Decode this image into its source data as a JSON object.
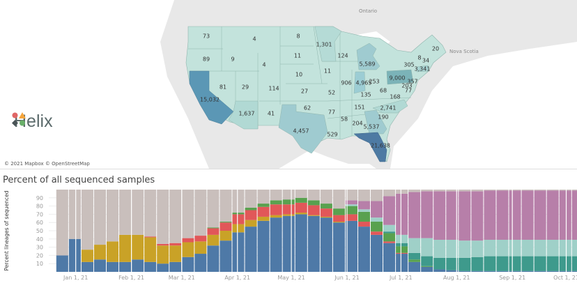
{
  "map": {
    "attribution": "© 2021 Mapbox © OpenStreetMap",
    "geo_labels": {
      "ontario": "Ontario",
      "nova_scotia": "Nova Scotia"
    },
    "states": [
      {
        "state": "WA",
        "value": "73"
      },
      {
        "state": "OR",
        "value": "89"
      },
      {
        "state": "ID",
        "value": "9"
      },
      {
        "state": "MT",
        "value": "4"
      },
      {
        "state": "WY",
        "value": "4"
      },
      {
        "state": "ND",
        "value": "8"
      },
      {
        "state": "SD",
        "value": "11"
      },
      {
        "state": "NE",
        "value": "10"
      },
      {
        "state": "MN",
        "value": "1,301"
      },
      {
        "state": "WI",
        "value": "124"
      },
      {
        "state": "MI",
        "value": "5,589"
      },
      {
        "state": "IA",
        "value": "11"
      },
      {
        "state": "IL",
        "value": "906"
      },
      {
        "state": "IN",
        "value": "4,965"
      },
      {
        "state": "OH",
        "value": "253"
      },
      {
        "state": "KS",
        "value": "27"
      },
      {
        "state": "MO",
        "value": "52"
      },
      {
        "state": "NV",
        "value": "81"
      },
      {
        "state": "UT",
        "value": "29"
      },
      {
        "state": "CO",
        "value": "114"
      },
      {
        "state": "CA",
        "value": "15,032"
      },
      {
        "state": "AZ",
        "value": "1,637"
      },
      {
        "state": "NM",
        "value": "41"
      },
      {
        "state": "OK",
        "value": "62"
      },
      {
        "state": "TX",
        "value": "4,457"
      },
      {
        "state": "AR",
        "value": "77"
      },
      {
        "state": "LA",
        "value": "529"
      },
      {
        "state": "MS",
        "value": "58"
      },
      {
        "state": "AL",
        "value": "204"
      },
      {
        "state": "TN",
        "value": "151"
      },
      {
        "state": "KY",
        "value": "135"
      },
      {
        "state": "GA",
        "value": "5,537"
      },
      {
        "state": "FL",
        "value": "21,638"
      },
      {
        "state": "SC",
        "value": "190"
      },
      {
        "state": "NC",
        "value": "2,741"
      },
      {
        "state": "VA",
        "value": "168"
      },
      {
        "state": "WV",
        "value": "68"
      },
      {
        "state": "PA",
        "value": "9,000"
      },
      {
        "state": "NY",
        "value": "305"
      },
      {
        "state": "VT",
        "value": "8"
      },
      {
        "state": "NH",
        "value": "34"
      },
      {
        "state": "ME",
        "value": "20"
      },
      {
        "state": "MA",
        "value": "3,341"
      },
      {
        "state": "NJ",
        "value": "357"
      },
      {
        "state": "MD",
        "value": "203"
      },
      {
        "state": "DE",
        "value": "77"
      }
    ],
    "colors": {
      "low": "#c3e3dc",
      "mid": "#9fcbd0",
      "high": "#5b97b5",
      "max": "#4d7aa3"
    }
  },
  "logo": {
    "text": "Helix",
    "colors": [
      "#e06666",
      "#f6a53c",
      "#4a5457",
      "#6ab06a"
    ]
  },
  "chart_data": {
    "type": "bar",
    "stacked": true,
    "title": "Percent of all sequenced samples",
    "ylabel": "Percent lineages of sequenced",
    "xlabel": "",
    "ylim": [
      0,
      100
    ],
    "yticks": [
      10,
      20,
      30,
      40,
      50,
      60,
      70,
      80,
      90
    ],
    "xticks": [
      "Jan 1, 21",
      "Feb 1, 21",
      "Mar 1, 21",
      "Apr 1, 21",
      "May 1, 21",
      "Jun 1, 21",
      "Jul 1, 21",
      "Aug 1, 21",
      "Sep 1, 21",
      "Oct 1, 21"
    ],
    "xtick_dates": [
      "2021-01-01",
      "2021-02-01",
      "2021-03-01",
      "2021-04-01",
      "2021-05-01",
      "2021-06-01",
      "2021-07-01",
      "2021-08-01",
      "2021-09-01",
      "2021-10-01"
    ],
    "grid": true,
    "x": [
      "2020-12-21",
      "2020-12-28",
      "2021-01-04",
      "2021-01-11",
      "2021-01-18",
      "2021-01-25",
      "2021-02-01",
      "2021-02-08",
      "2021-02-15",
      "2021-02-22",
      "2021-03-01",
      "2021-03-08",
      "2021-03-15",
      "2021-03-22",
      "2021-03-29",
      "2021-04-05",
      "2021-04-12",
      "2021-04-19",
      "2021-04-26",
      "2021-05-03",
      "2021-05-10",
      "2021-05-17",
      "2021-05-24",
      "2021-05-31",
      "2021-06-07",
      "2021-06-14",
      "2021-06-21",
      "2021-06-28",
      "2021-07-05",
      "2021-07-12",
      "2021-07-19",
      "2021-07-26",
      "2021-08-02",
      "2021-08-09",
      "2021-08-16",
      "2021-08-23",
      "2021-08-30",
      "2021-09-06",
      "2021-09-13",
      "2021-09-20",
      "2021-09-27",
      "2021-10-04"
    ],
    "series": [
      {
        "color": "#4e79a7",
        "values": [
          20,
          40,
          12,
          15,
          12,
          12,
          15,
          12,
          10,
          12,
          18,
          22,
          32,
          38,
          48,
          55,
          62,
          66,
          68,
          70,
          68,
          66,
          60,
          62,
          55,
          45,
          35,
          22,
          12,
          6,
          3,
          2,
          1,
          1,
          1,
          1,
          1,
          1,
          1,
          1,
          1,
          1
        ]
      },
      {
        "color": "#c9a227",
        "values": [
          0,
          0,
          15,
          18,
          25,
          33,
          30,
          30,
          22,
          20,
          18,
          15,
          13,
          12,
          10,
          8,
          5,
          3,
          2,
          2,
          1,
          1,
          1,
          0,
          0,
          0,
          0,
          0,
          0,
          0,
          0,
          0,
          0,
          0,
          0,
          0,
          0,
          0,
          0,
          0,
          0,
          0
        ]
      },
      {
        "color": "#e15759",
        "values": [
          0,
          0,
          0,
          0,
          0,
          0,
          0,
          1,
          2,
          3,
          5,
          7,
          8,
          10,
          12,
          12,
          12,
          13,
          12,
          12,
          12,
          10,
          8,
          8,
          6,
          4,
          2,
          1,
          0,
          0,
          0,
          0,
          0,
          0,
          0,
          0,
          0,
          0,
          0,
          0,
          0,
          0
        ]
      },
      {
        "color": "#59a14f",
        "values": [
          0,
          0,
          0,
          0,
          0,
          0,
          0,
          0,
          0,
          0,
          0,
          0,
          1,
          1,
          2,
          3,
          4,
          5,
          6,
          6,
          6,
          6,
          8,
          10,
          12,
          12,
          10,
          8,
          3,
          1,
          0,
          0,
          0,
          0,
          0,
          0,
          0,
          0,
          0,
          0,
          0,
          0
        ]
      },
      {
        "color": "#3e9a8c",
        "values": [
          0,
          0,
          0,
          0,
          0,
          0,
          0,
          0,
          0,
          0,
          0,
          0,
          0,
          0,
          0,
          0,
          0,
          0,
          0,
          0,
          0,
          0,
          0,
          0,
          0,
          0,
          2,
          4,
          8,
          12,
          14,
          15,
          16,
          17,
          18,
          18,
          18,
          18,
          18,
          18,
          18,
          18
        ]
      },
      {
        "color": "#9fd0c8",
        "values": [
          0,
          0,
          0,
          0,
          0,
          0,
          0,
          0,
          0,
          0,
          0,
          0,
          0,
          0,
          0,
          0,
          0,
          0,
          0,
          0,
          0,
          0,
          0,
          2,
          3,
          5,
          8,
          10,
          18,
          22,
          22,
          22,
          21,
          20,
          20,
          20,
          20,
          20,
          20,
          20,
          20,
          20
        ]
      },
      {
        "color": "#b77fa9",
        "values": [
          0,
          0,
          0,
          0,
          0,
          0,
          0,
          0,
          0,
          0,
          0,
          0,
          0,
          0,
          0,
          0,
          0,
          0,
          0,
          0,
          0,
          0,
          0,
          5,
          10,
          20,
          35,
          50,
          56,
          57,
          59,
          59,
          60,
          60,
          60,
          60,
          60,
          60,
          60,
          60,
          60,
          60
        ]
      },
      {
        "color": "#c9bfbc",
        "values": [
          80,
          60,
          73,
          67,
          63,
          55,
          55,
          57,
          66,
          65,
          59,
          56,
          46,
          39,
          28,
          22,
          17,
          13,
          12,
          10,
          13,
          17,
          23,
          13,
          14,
          14,
          8,
          5,
          3,
          2,
          2,
          2,
          2,
          2,
          1,
          1,
          1,
          1,
          1,
          1,
          1,
          1
        ]
      }
    ]
  }
}
